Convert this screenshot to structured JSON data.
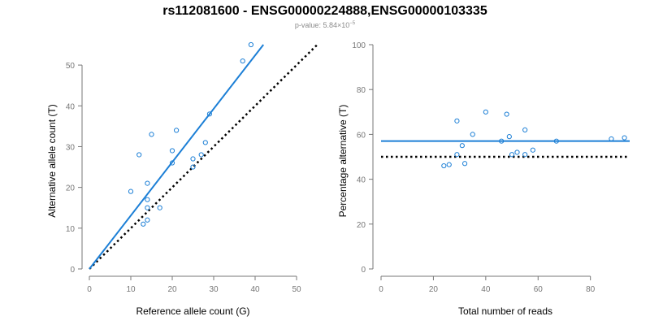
{
  "figure": {
    "title": "rs112081600 - ENSG00000224888,ENSG00000103335",
    "pvalue_prefix": "p-value: 5.84×10",
    "pvalue_exponent": "−5"
  },
  "colors": {
    "series": "#1c7fd6",
    "reference_line": "#000000",
    "axis": "#777777"
  },
  "chart_data": [
    {
      "type": "scatter",
      "xlabel": "Reference allele count (G)",
      "ylabel": "Alternative allele count (T)",
      "xlim": [
        0,
        50
      ],
      "ylim": [
        0,
        55
      ],
      "xticks": [
        0,
        10,
        20,
        30,
        40,
        50
      ],
      "yticks": [
        0,
        10,
        20,
        30,
        40,
        50
      ],
      "points": [
        {
          "x": 39,
          "y": 55
        },
        {
          "x": 37,
          "y": 51
        },
        {
          "x": 29,
          "y": 38
        },
        {
          "x": 28,
          "y": 31
        },
        {
          "x": 27,
          "y": 28
        },
        {
          "x": 25,
          "y": 27
        },
        {
          "x": 25,
          "y": 25
        },
        {
          "x": 21,
          "y": 34
        },
        {
          "x": 20,
          "y": 29
        },
        {
          "x": 20,
          "y": 26
        },
        {
          "x": 17,
          "y": 15
        },
        {
          "x": 15,
          "y": 33
        },
        {
          "x": 14,
          "y": 21
        },
        {
          "x": 14,
          "y": 17
        },
        {
          "x": 14,
          "y": 15
        },
        {
          "x": 14,
          "y": 12
        },
        {
          "x": 13,
          "y": 11
        },
        {
          "x": 12,
          "y": 28
        },
        {
          "x": 10,
          "y": 19
        }
      ],
      "fit_line": {
        "x": [
          0,
          42
        ],
        "y": [
          0,
          55
        ]
      },
      "reference_line": {
        "x": [
          0,
          55
        ],
        "y": [
          0,
          55
        ]
      }
    },
    {
      "type": "scatter",
      "xlabel": "Total number of reads",
      "ylabel": "Percentage alternative (T)",
      "xlim": [
        0,
        95
      ],
      "ylim": [
        0,
        100
      ],
      "xticks": [
        0,
        20,
        40,
        60,
        80
      ],
      "yticks": [
        0,
        20,
        40,
        60,
        80,
        100
      ],
      "points": [
        {
          "x": 24,
          "y": 46
        },
        {
          "x": 26,
          "y": 46.5
        },
        {
          "x": 29,
          "y": 66
        },
        {
          "x": 29,
          "y": 51
        },
        {
          "x": 31,
          "y": 55
        },
        {
          "x": 32,
          "y": 47
        },
        {
          "x": 35,
          "y": 60
        },
        {
          "x": 40,
          "y": 70
        },
        {
          "x": 46,
          "y": 57
        },
        {
          "x": 48,
          "y": 69
        },
        {
          "x": 49,
          "y": 59
        },
        {
          "x": 50,
          "y": 51
        },
        {
          "x": 52,
          "y": 52
        },
        {
          "x": 55,
          "y": 51
        },
        {
          "x": 55,
          "y": 62
        },
        {
          "x": 58,
          "y": 53
        },
        {
          "x": 67,
          "y": 57
        },
        {
          "x": 88,
          "y": 58
        },
        {
          "x": 93,
          "y": 58.5
        }
      ],
      "fit_line": {
        "x": [
          0,
          95
        ],
        "y": [
          57,
          57
        ]
      },
      "reference_line": {
        "x": [
          0,
          95
        ],
        "y": [
          50,
          50
        ]
      }
    }
  ]
}
